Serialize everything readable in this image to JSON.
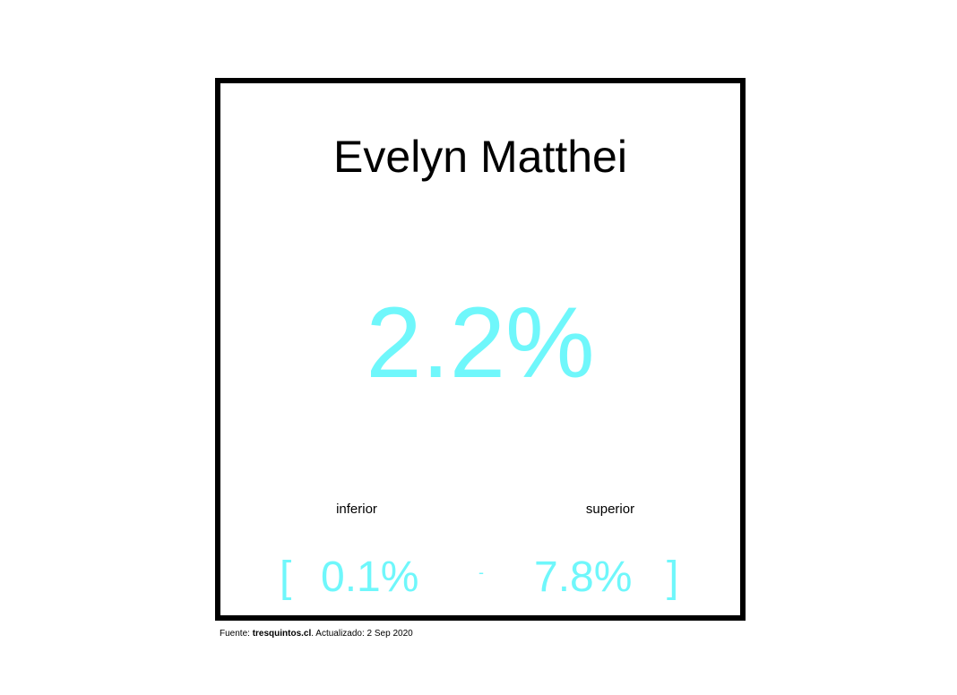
{
  "card": {
    "name": "Evelyn Matthei",
    "value": "2.2%",
    "lower_label": "inferior",
    "upper_label": "superior",
    "bracket_open": "[",
    "lower_value": "0.1%",
    "separator": "-",
    "upper_value": "7.8%",
    "bracket_close": "]"
  },
  "footer": {
    "prefix": "Fuente: ",
    "source": "tresquintos.cl",
    "suffix": ". Actualizado: 2 Sep 2020"
  },
  "colors": {
    "accent": "#6ff7fb",
    "text": "#000000",
    "border": "#000000"
  }
}
